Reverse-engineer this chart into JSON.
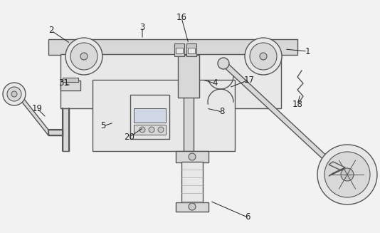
{
  "bg_color": "#f2f2f2",
  "line_color": "#555555",
  "fill_light": "#e8e8e8",
  "fill_mid": "#d8d8d8",
  "fill_dark": "#c8c8c8",
  "white": "#ffffff"
}
